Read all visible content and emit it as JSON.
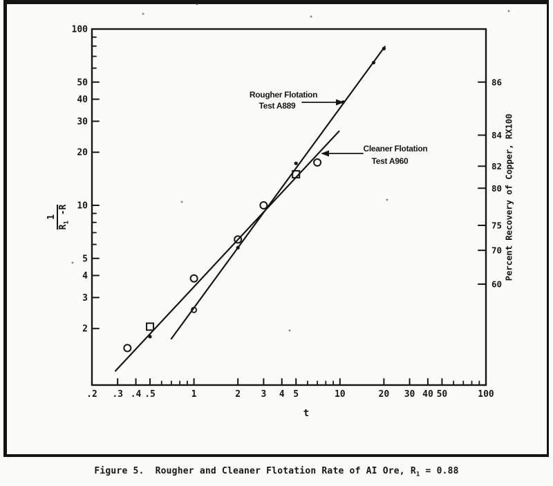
{
  "colors": {
    "ink": "#161616",
    "paper": "#fafaf8"
  },
  "caption": {
    "before_sub": "Figure 5.  Rougher and Cleaner Flotation Rate of AI Ore, R",
    "sub": "1",
    "after_sub": " = 0.88"
  },
  "chart_data": {
    "type": "scatter",
    "x_axis": {
      "label": "t",
      "scale": "log",
      "range": [
        0.2,
        100
      ],
      "ticks": [
        {
          "v": 0.2,
          "label": ".2"
        },
        {
          "v": 0.3,
          "label": ".3"
        },
        {
          "v": 0.4,
          "label": ".4"
        },
        {
          "v": 0.5,
          "label": ".5"
        },
        {
          "v": 1,
          "label": "1"
        },
        {
          "v": 2,
          "label": "2"
        },
        {
          "v": 3,
          "label": "3"
        },
        {
          "v": 4,
          "label": "4"
        },
        {
          "v": 5,
          "label": "5"
        },
        {
          "v": 10,
          "label": "10"
        },
        {
          "v": 20,
          "label": "20"
        },
        {
          "v": 30,
          "label": "30"
        },
        {
          "v": 40,
          "label": "40"
        },
        {
          "v": 50,
          "label": "50"
        },
        {
          "v": 100,
          "label": "100"
        }
      ],
      "minor_ticks": [
        0.6,
        0.7,
        0.8,
        0.9,
        6,
        7,
        8,
        9,
        60,
        70,
        80,
        90
      ]
    },
    "y_axis_left": {
      "scale": "log",
      "range": [
        1,
        100
      ],
      "label": {
        "numerator": "1",
        "den_before_sub": "R",
        "den_sub": "1",
        "den_after_sub": " -R"
      },
      "ticks": [
        {
          "v": 100,
          "label": "100"
        },
        {
          "v": 50,
          "label": "50"
        },
        {
          "v": 40,
          "label": "40"
        },
        {
          "v": 30,
          "label": "30"
        },
        {
          "v": 20,
          "label": "20"
        },
        {
          "v": 10,
          "label": "10"
        },
        {
          "v": 5,
          "label": "5"
        },
        {
          "v": 4,
          "label": "4"
        },
        {
          "v": 3,
          "label": "3"
        },
        {
          "v": 2,
          "label": "2"
        }
      ],
      "minor_ticks": [
        90,
        80,
        70,
        60,
        9,
        8,
        7,
        6
      ]
    },
    "y_axis_right": {
      "label": "Percent Recovery of Copper, RX100",
      "r_ultimate": 0.88,
      "ticks": [
        {
          "r": 86,
          "label": "86"
        },
        {
          "r": 84,
          "label": "84"
        },
        {
          "r": 82,
          "label": "82"
        },
        {
          "r": 80,
          "label": "80"
        },
        {
          "r": 75,
          "label": "75"
        },
        {
          "r": 70,
          "label": "70"
        },
        {
          "r": 60,
          "label": "60"
        }
      ]
    },
    "series": [
      {
        "name": "Rougher Flotation Test A889",
        "test_id": "A889",
        "line_fit": {
          "from": [
            0.7,
            1.75
          ],
          "to": [
            20.3,
            79.5
          ]
        },
        "points": [
          {
            "t": 0.5,
            "v": 1.8,
            "marker": "dot"
          },
          {
            "t": 1,
            "v": 2.55,
            "marker": "small-circle"
          },
          {
            "t": 2,
            "v": 5.75,
            "marker": "dot"
          },
          {
            "t": 5,
            "v": 17.3,
            "marker": "dot"
          },
          {
            "t": 10.5,
            "v": 38.5,
            "marker": "dot"
          },
          {
            "t": 17,
            "v": 64.5,
            "marker": "dot"
          },
          {
            "t": 20,
            "v": 77.5,
            "marker": "dot"
          }
        ]
      },
      {
        "name": "Cleaner Flotation Test A960",
        "test_id": "A960",
        "line_fit": {
          "from": [
            0.29,
            1.15
          ],
          "to": [
            9.85,
            26.3
          ]
        },
        "points": [
          {
            "t": 0.35,
            "v": 1.55,
            "marker": "circle"
          },
          {
            "t": 0.5,
            "v": 2.05,
            "marker": "square"
          },
          {
            "t": 1,
            "v": 3.85,
            "marker": "circle"
          },
          {
            "t": 2,
            "v": 6.4,
            "marker": "circle"
          },
          {
            "t": 3,
            "v": 10,
            "marker": "circle"
          },
          {
            "t": 5,
            "v": 15,
            "marker": "square"
          },
          {
            "t": 7,
            "v": 17.5,
            "marker": "circle"
          }
        ]
      }
    ],
    "annotations": [
      {
        "lines": [
          "Rougher Flotation",
          "Test A889"
        ]
      },
      {
        "lines": [
          "Cleaner Flotation",
          "Test A960"
        ]
      }
    ]
  }
}
